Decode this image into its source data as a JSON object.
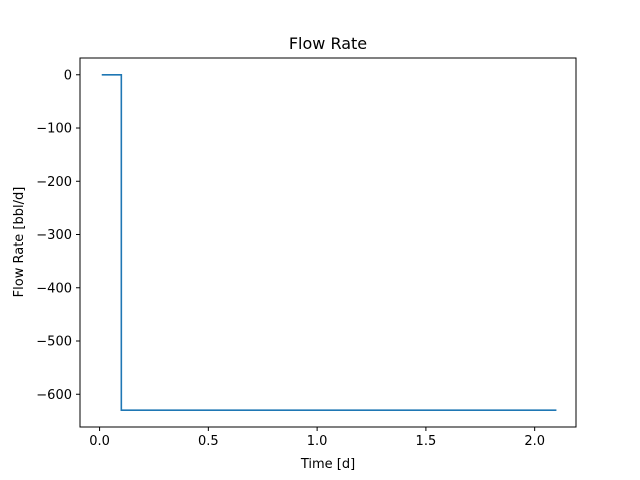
{
  "chart_data": {
    "type": "line",
    "title": "Flow Rate",
    "xlabel": "Time [d]",
    "ylabel": "Flow Rate [bbl/d]",
    "xlim": [
      -0.09,
      2.19
    ],
    "ylim": [
      -661.5,
      31.5
    ],
    "xticks": [
      0.0,
      0.5,
      1.0,
      1.5,
      2.0
    ],
    "xtick_labels": [
      "0.0",
      "0.5",
      "1.0",
      "1.5",
      "2.0"
    ],
    "yticks": [
      0,
      -100,
      -200,
      -300,
      -400,
      -500,
      -600
    ],
    "ytick_labels": [
      "0",
      "−100",
      "−200",
      "−300",
      "−400",
      "−500",
      "−600"
    ],
    "grid": false,
    "series": [
      {
        "color": "#1f77b4",
        "x": [
          0.01,
          0.1,
          0.1,
          2.1
        ],
        "y": [
          0,
          0,
          -630,
          -630
        ]
      }
    ]
  }
}
